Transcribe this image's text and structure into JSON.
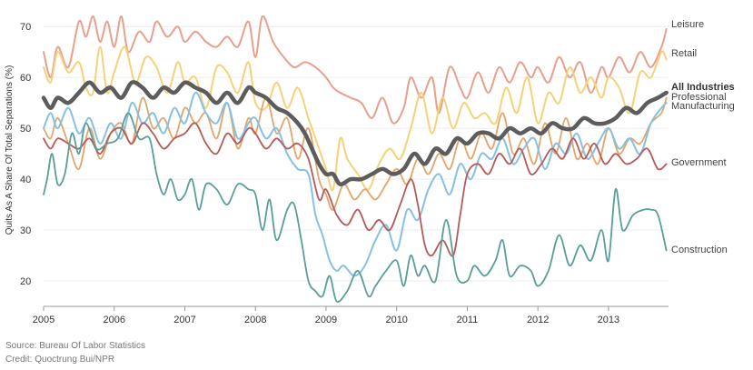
{
  "chart_data": {
    "type": "line",
    "ylabel": "Quits As A Share Of Total Separations (%)",
    "ylim": [
      15,
      72
    ],
    "yticks": [
      20,
      30,
      40,
      50,
      60,
      70
    ],
    "xlim": [
      2005,
      2013.85
    ],
    "xticks": [
      2005,
      2006,
      2007,
      2008,
      2009,
      2010,
      2011,
      2012,
      2013
    ],
    "grid": "horizontal",
    "legend": "labels at right end of each line",
    "series": [
      {
        "name": "Leisure",
        "color": "#e8a08e",
        "width": 2,
        "x": [
          2005.0,
          2005.1,
          2005.2,
          2005.35,
          2005.5,
          2005.6,
          2005.7,
          2005.8,
          2005.9,
          2006.0,
          2006.1,
          2006.2,
          2006.35,
          2006.5,
          2006.6,
          2006.75,
          2006.9,
          2007.0,
          2007.15,
          2007.3,
          2007.45,
          2007.6,
          2007.75,
          2007.9,
          2008.0,
          2008.1,
          2008.25,
          2008.4,
          2008.55,
          2008.7,
          2008.85,
          2009.0,
          2009.1,
          2009.2,
          2009.35,
          2009.5,
          2009.65,
          2009.8,
          2009.95,
          2010.1,
          2010.2,
          2010.35,
          2010.5,
          2010.6,
          2010.75,
          2010.9,
          2011.0,
          2011.15,
          2011.3,
          2011.45,
          2011.6,
          2011.75,
          2011.9,
          2012.0,
          2012.15,
          2012.3,
          2012.45,
          2012.6,
          2012.75,
          2012.9,
          2013.0,
          2013.15,
          2013.3,
          2013.45,
          2013.6,
          2013.75,
          2013.82
        ],
        "y": [
          65,
          60,
          66,
          62,
          71,
          68,
          72,
          67,
          71,
          66,
          72,
          65,
          69,
          67,
          71,
          68,
          70,
          67,
          69,
          67,
          66,
          68,
          66,
          71,
          64,
          72,
          67,
          64,
          62,
          63,
          62,
          60,
          58,
          57,
          56,
          55,
          52,
          56,
          51,
          54,
          60,
          56,
          60,
          53,
          62,
          58,
          56,
          61,
          57,
          62,
          59,
          63,
          60,
          62,
          59,
          64,
          60,
          63,
          57,
          62,
          60,
          64,
          61,
          65,
          62,
          66,
          69.5
        ]
      },
      {
        "name": "Retail",
        "color": "#f5d27a",
        "width": 2,
        "x": [
          2005.0,
          2005.1,
          2005.2,
          2005.35,
          2005.5,
          2005.6,
          2005.7,
          2005.8,
          2005.9,
          2006.0,
          2006.15,
          2006.3,
          2006.45,
          2006.6,
          2006.75,
          2006.9,
          2007.0,
          2007.15,
          2007.3,
          2007.45,
          2007.6,
          2007.75,
          2007.9,
          2008.0,
          2008.15,
          2008.3,
          2008.45,
          2008.6,
          2008.75,
          2008.9,
          2009.0,
          2009.1,
          2009.2,
          2009.3,
          2009.45,
          2009.6,
          2009.75,
          2009.9,
          2010.05,
          2010.2,
          2010.35,
          2010.5,
          2010.65,
          2010.8,
          2010.95,
          2011.1,
          2011.25,
          2011.4,
          2011.55,
          2011.7,
          2011.85,
          2012.0,
          2012.15,
          2012.3,
          2012.45,
          2012.6,
          2012.75,
          2012.9,
          2013.0,
          2013.15,
          2013.3,
          2013.45,
          2013.6,
          2013.75,
          2013.82
        ],
        "y": [
          62,
          59,
          65,
          61,
          63,
          58,
          57,
          66,
          57,
          61,
          66,
          59,
          64,
          62,
          57,
          63,
          59,
          60,
          54,
          62,
          61,
          57,
          63,
          55,
          54,
          59,
          54,
          58,
          52,
          46,
          42,
          38,
          48,
          44,
          41,
          38,
          43,
          46,
          44,
          50,
          57,
          49,
          56,
          50,
          55,
          52,
          53,
          51,
          58,
          53,
          60,
          51,
          57,
          55,
          62,
          57,
          60,
          56,
          60,
          58,
          53,
          61,
          60,
          65,
          63.5
        ]
      },
      {
        "name": "Professional",
        "color": "#e3a56a",
        "width": 1.8,
        "x": [
          2005.0,
          2005.1,
          2005.2,
          2005.35,
          2005.5,
          2005.65,
          2005.8,
          2005.95,
          2006.1,
          2006.25,
          2006.4,
          2006.55,
          2006.7,
          2006.85,
          2007.0,
          2007.15,
          2007.3,
          2007.45,
          2007.6,
          2007.75,
          2007.9,
          2008.0,
          2008.15,
          2008.3,
          2008.45,
          2008.6,
          2008.75,
          2008.9,
          2009.0,
          2009.1,
          2009.25,
          2009.4,
          2009.55,
          2009.7,
          2009.85,
          2010.0,
          2010.15,
          2010.3,
          2010.45,
          2010.6,
          2010.75,
          2010.9,
          2011.05,
          2011.2,
          2011.35,
          2011.5,
          2011.65,
          2011.8,
          2011.95,
          2012.1,
          2012.25,
          2012.4,
          2012.55,
          2012.7,
          2012.85,
          2013.0,
          2013.15,
          2013.3,
          2013.45,
          2013.6,
          2013.75,
          2013.82
        ],
        "y": [
          50,
          48,
          52,
          47,
          42,
          50,
          44,
          49,
          51,
          47,
          56,
          50,
          52,
          48,
          54,
          51,
          53,
          48,
          55,
          46,
          52,
          49,
          56,
          49,
          52,
          44,
          50,
          40,
          37,
          34,
          39,
          36,
          38,
          36,
          39,
          42,
          39,
          44,
          41,
          45,
          42,
          48,
          44,
          49,
          46,
          53,
          45,
          48,
          43,
          51,
          45,
          52,
          44,
          47,
          43,
          50,
          45,
          48,
          47,
          51,
          53,
          56
        ]
      },
      {
        "name": "Manufacturing",
        "color": "#86c1e3",
        "width": 2,
        "x": [
          2005.0,
          2005.1,
          2005.2,
          2005.35,
          2005.5,
          2005.65,
          2005.8,
          2005.95,
          2006.1,
          2006.25,
          2006.4,
          2006.55,
          2006.7,
          2006.85,
          2007.0,
          2007.15,
          2007.3,
          2007.45,
          2007.6,
          2007.75,
          2007.9,
          2008.0,
          2008.15,
          2008.3,
          2008.45,
          2008.6,
          2008.75,
          2008.85,
          2008.95,
          2009.05,
          2009.15,
          2009.25,
          2009.4,
          2009.55,
          2009.7,
          2009.85,
          2010.0,
          2010.15,
          2010.3,
          2010.45,
          2010.6,
          2010.75,
          2010.9,
          2011.05,
          2011.2,
          2011.35,
          2011.5,
          2011.65,
          2011.8,
          2011.95,
          2012.1,
          2012.25,
          2012.4,
          2012.55,
          2012.7,
          2012.85,
          2013.0,
          2013.15,
          2013.3,
          2013.45,
          2013.6,
          2013.75,
          2013.82
        ],
        "y": [
          50,
          53,
          50,
          54,
          49,
          52,
          47,
          51,
          48,
          55,
          51,
          53,
          49,
          54,
          51,
          57,
          53,
          51,
          55,
          48,
          51,
          52,
          48,
          50,
          45,
          42,
          41,
          33,
          29,
          24,
          22,
          23,
          21,
          23,
          28,
          31,
          26,
          34,
          32,
          38,
          41,
          37,
          43,
          40,
          45,
          44,
          48,
          43,
          46,
          48,
          42,
          47,
          45,
          49,
          44,
          47,
          50,
          46,
          48,
          45,
          51,
          54,
          55
        ]
      },
      {
        "name": "All Industries",
        "color": "#5c5c5c",
        "width": 4.5,
        "x": [
          2005.0,
          2005.1,
          2005.2,
          2005.35,
          2005.5,
          2005.65,
          2005.8,
          2005.95,
          2006.1,
          2006.25,
          2006.4,
          2006.55,
          2006.7,
          2006.85,
          2007.0,
          2007.15,
          2007.3,
          2007.45,
          2007.6,
          2007.75,
          2007.9,
          2008.0,
          2008.15,
          2008.3,
          2008.45,
          2008.6,
          2008.7,
          2008.8,
          2008.9,
          2009.0,
          2009.1,
          2009.2,
          2009.35,
          2009.5,
          2009.65,
          2009.8,
          2009.95,
          2010.1,
          2010.25,
          2010.4,
          2010.55,
          2010.7,
          2010.85,
          2011.0,
          2011.15,
          2011.3,
          2011.45,
          2011.6,
          2011.75,
          2011.9,
          2012.05,
          2012.2,
          2012.35,
          2012.5,
          2012.65,
          2012.8,
          2012.95,
          2013.1,
          2013.25,
          2013.4,
          2013.55,
          2013.7,
          2013.82
        ],
        "y": [
          56,
          54,
          56,
          55,
          57,
          59,
          57,
          58,
          56,
          59,
          58,
          56,
          58,
          57,
          59,
          58,
          57,
          55,
          57,
          55,
          58,
          57,
          56,
          54,
          53,
          51,
          49,
          46,
          43,
          41,
          41,
          39,
          40,
          40,
          41,
          42,
          41,
          42,
          45,
          43,
          46,
          45,
          48,
          47,
          49,
          49,
          48,
          50,
          49,
          50,
          49,
          51,
          50,
          50,
          52,
          51,
          51,
          52,
          54,
          53,
          55,
          56,
          57
        ]
      },
      {
        "name": "Government",
        "color": "#b65a5a",
        "width": 1.8,
        "x": [
          2005.0,
          2005.1,
          2005.2,
          2005.35,
          2005.5,
          2005.65,
          2005.8,
          2005.95,
          2006.1,
          2006.25,
          2006.4,
          2006.55,
          2006.7,
          2006.85,
          2007.0,
          2007.15,
          2007.3,
          2007.45,
          2007.6,
          2007.75,
          2007.9,
          2008.0,
          2008.15,
          2008.3,
          2008.45,
          2008.6,
          2008.75,
          2008.9,
          2009.0,
          2009.15,
          2009.3,
          2009.45,
          2009.6,
          2009.75,
          2009.9,
          2010.05,
          2010.2,
          2010.3,
          2010.4,
          2010.5,
          2010.65,
          2010.8,
          2010.9,
          2011.0,
          2011.15,
          2011.3,
          2011.45,
          2011.6,
          2011.75,
          2011.9,
          2012.05,
          2012.2,
          2012.35,
          2012.5,
          2012.65,
          2012.8,
          2012.95,
          2013.1,
          2013.25,
          2013.4,
          2013.55,
          2013.7,
          2013.82
        ],
        "y": [
          48,
          46,
          48,
          47,
          46,
          48,
          45,
          49,
          50,
          47,
          51,
          49,
          46,
          48,
          49,
          51,
          47,
          45,
          49,
          47,
          50,
          49,
          46,
          48,
          46,
          47,
          44,
          36,
          38,
          33,
          31,
          34,
          30,
          32,
          30,
          35,
          40,
          35,
          27,
          25,
          28,
          25,
          33,
          41,
          43,
          41,
          45,
          43,
          46,
          41,
          43,
          46,
          44,
          48,
          44,
          47,
          43,
          45,
          43,
          44,
          46,
          42,
          43
        ]
      },
      {
        "name": "Construction",
        "color": "#5a9e98",
        "width": 1.8,
        "x": [
          2005.0,
          2005.05,
          2005.12,
          2005.2,
          2005.3,
          2005.4,
          2005.5,
          2005.6,
          2005.75,
          2005.9,
          2006.05,
          2006.2,
          2006.35,
          2006.5,
          2006.6,
          2006.7,
          2006.8,
          2006.9,
          2007.0,
          2007.1,
          2007.2,
          2007.3,
          2007.45,
          2007.6,
          2007.75,
          2007.9,
          2008.0,
          2008.1,
          2008.2,
          2008.3,
          2008.45,
          2008.55,
          2008.65,
          2008.75,
          2008.85,
          2008.95,
          2009.05,
          2009.15,
          2009.3,
          2009.45,
          2009.6,
          2009.7,
          2009.85,
          2010.0,
          2010.1,
          2010.2,
          2010.3,
          2010.4,
          2010.55,
          2010.7,
          2010.85,
          2011.0,
          2011.1,
          2011.25,
          2011.4,
          2011.5,
          2011.6,
          2011.75,
          2011.9,
          2012.0,
          2012.15,
          2012.3,
          2012.45,
          2012.6,
          2012.75,
          2012.9,
          2013.0,
          2013.1,
          2013.2,
          2013.35,
          2013.5,
          2013.6,
          2013.7,
          2013.82
        ],
        "y": [
          37,
          40,
          45,
          39,
          41,
          49,
          45,
          51,
          46,
          47,
          48,
          53,
          48,
          48,
          41,
          37,
          40,
          36,
          37,
          40,
          34,
          39,
          38,
          35,
          39,
          38,
          37,
          30,
          36,
          28,
          34,
          35,
          28,
          20,
          18,
          17,
          21,
          16,
          18,
          22,
          17,
          19,
          22,
          24,
          19,
          25,
          21,
          23,
          20,
          32,
          21,
          20,
          23,
          21,
          24,
          28,
          21,
          23,
          22,
          19,
          22,
          29,
          23,
          27,
          24,
          30,
          24,
          38,
          30,
          33,
          34,
          34,
          33,
          26
        ]
      }
    ]
  },
  "source": "Source: Bureau Of Labor Statistics",
  "credit": "Credit: Quoctrung Bui/NPR"
}
